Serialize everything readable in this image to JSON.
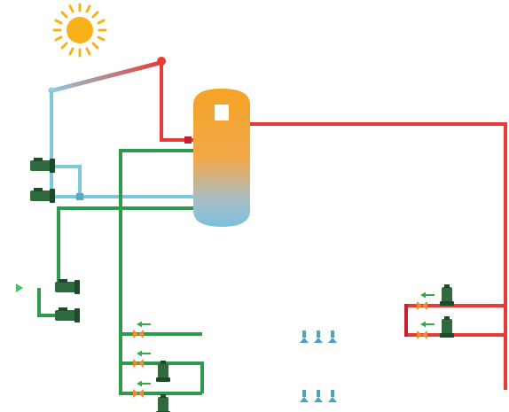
{
  "colors": {
    "hot": "#e63b36",
    "hot_dark": "#c8202a",
    "cold": "#7ec8dc",
    "cold_dark": "#5aa9c4",
    "green": "#2e9a4c",
    "green_dark": "#1f6b33",
    "pump": "#2f6a3d",
    "pump_dark": "#1e4a2a",
    "valve": "#f08a2c",
    "small_valve": "#4aa3c2",
    "tank_top": "#f4a323",
    "tank_bottom": "#7cc0dd",
    "sun": "#f7b21b",
    "arrow": "#3aa94b"
  },
  "icons": {
    "sun": "sun-icon",
    "pump": "pump-icon",
    "valve": "valve-icon",
    "arrow": "flow-arrow-icon"
  }
}
